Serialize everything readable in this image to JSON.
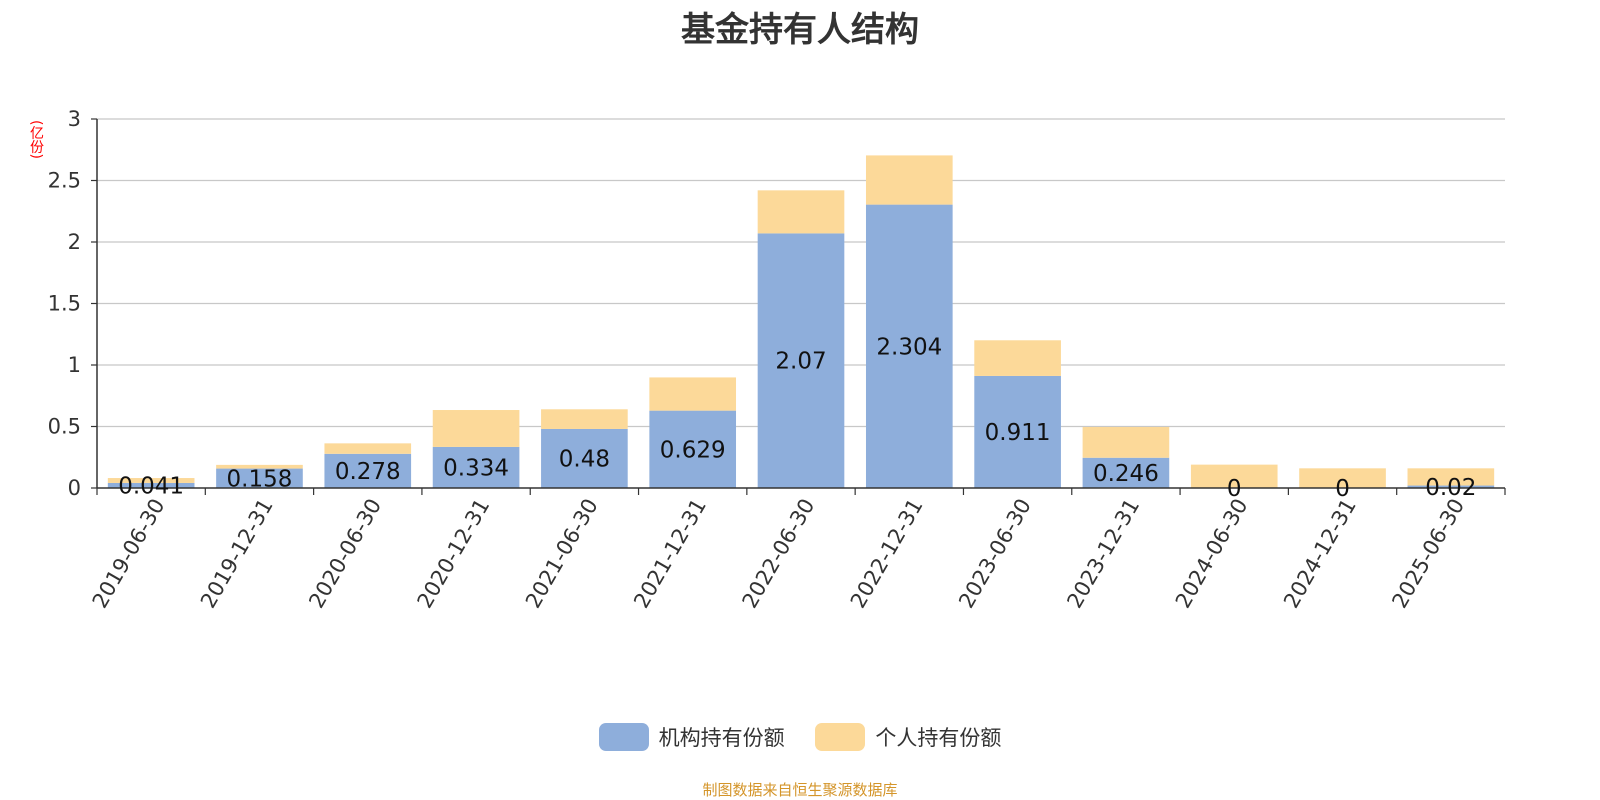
{
  "chart_data": {
    "type": "bar",
    "stacked": true,
    "title": "基金持有人结构",
    "ylabel": "(亿份)",
    "ylim": [
      0,
      3
    ],
    "yticks": [
      "0",
      "0.5",
      "1",
      "1.5",
      "2",
      "2.5",
      "3"
    ],
    "grid": true,
    "legend_position": "bottom",
    "categories": [
      "2019-06-30",
      "2019-12-31",
      "2020-06-30",
      "2020-12-31",
      "2021-06-30",
      "2021-12-31",
      "2022-06-30",
      "2022-12-31",
      "2023-06-30",
      "2023-12-31",
      "2024-06-30",
      "2024-12-31",
      "2025-06-30"
    ],
    "series": [
      {
        "name": "机构持有份额",
        "color": "#8eaedb",
        "values": [
          0.041,
          0.158,
          0.278,
          0.334,
          0.48,
          0.629,
          2.07,
          2.304,
          0.911,
          0.246,
          0,
          0,
          0.02
        ],
        "labels": [
          "0.041",
          "0.158",
          "0.278",
          "0.334",
          "0.48",
          "0.629",
          "2.07",
          "2.304",
          "0.911",
          "0.246",
          "0",
          "0",
          "0.02"
        ]
      },
      {
        "name": "个人持有份额",
        "color": "#fcd999",
        "values": [
          0.04,
          0.03,
          0.085,
          0.3,
          0.16,
          0.27,
          0.35,
          0.4,
          0.29,
          0.25,
          0.19,
          0.16,
          0.14
        ]
      }
    ]
  },
  "source_note": "制图数据来自恒生聚源数据库"
}
